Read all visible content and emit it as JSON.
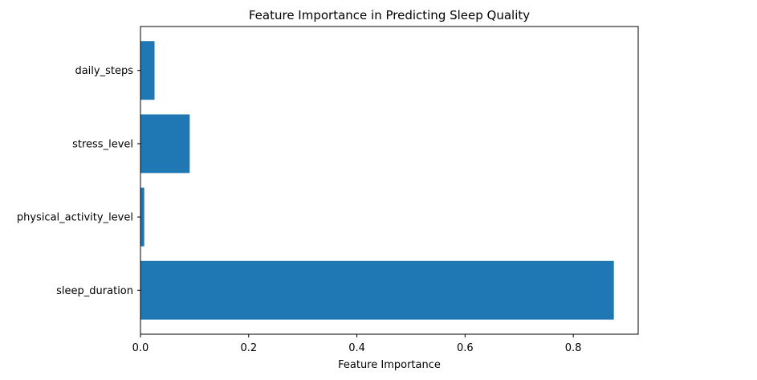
{
  "chart_data": {
    "type": "bar",
    "orientation": "horizontal",
    "title": "Feature Importance in Predicting Sleep Quality",
    "xlabel": "Feature Importance",
    "ylabel": "",
    "categories": [
      "sleep_duration",
      "physical_activity_level",
      "stress_level",
      "daily_steps"
    ],
    "values": [
      0.875,
      0.007,
      0.091,
      0.026
    ],
    "xlim": [
      0,
      0.92
    ],
    "xticks": [
      0.0,
      0.2,
      0.4,
      0.6,
      0.8
    ],
    "xtick_labels": [
      "0.0",
      "0.2",
      "0.4",
      "0.6",
      "0.8"
    ],
    "grid": false,
    "bar_color": "#1f77b4"
  }
}
